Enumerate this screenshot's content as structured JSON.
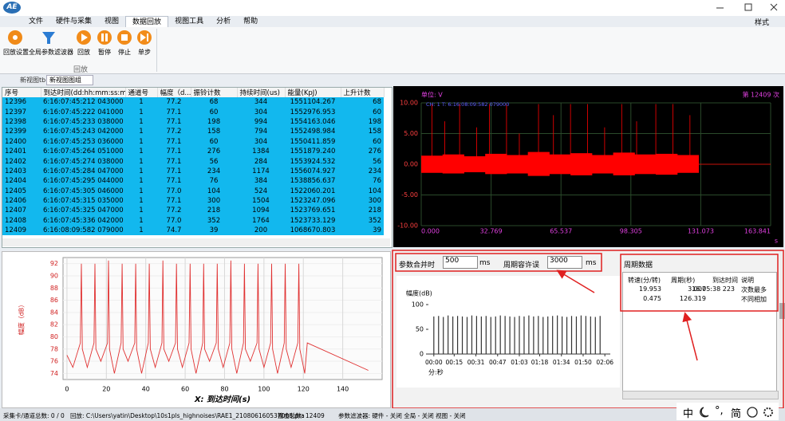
{
  "title_bar": {
    "logo": "AE"
  },
  "menu": {
    "items": [
      "文件",
      "硬件与采集",
      "视图",
      "数据回放",
      "视图工具",
      "分析",
      "帮助"
    ],
    "style": "样式"
  },
  "ribbon": {
    "buttons": [
      "回放设置",
      "全局参数滤波器",
      "回放",
      "暂停",
      "停止",
      "单步"
    ],
    "group": "回放"
  },
  "tabs": [
    "新视图tb",
    "新视图图组"
  ],
  "hit_table": {
    "columns": [
      "序号",
      "到达时间(dd:hh:mm:ss:m...",
      "通道号",
      "幅度（d...",
      "振铃计数",
      "持续时间(us)",
      "能量(KpJ)",
      "上升计数"
    ],
    "rows": [
      [
        "12396",
        "6:16:07:45:212 043000",
        "1",
        "77.2",
        "68",
        "344",
        "1551104.267",
        "68"
      ],
      [
        "12397",
        "6:16:07:45:222 041000",
        "1",
        "77.1",
        "60",
        "304",
        "1552976.953",
        "60"
      ],
      [
        "12398",
        "6:16:07:45:233 038000",
        "1",
        "77.1",
        "198",
        "994",
        "1554163.046",
        "198"
      ],
      [
        "12399",
        "6:16:07:45:243 042000",
        "1",
        "77.2",
        "158",
        "794",
        "1552498.984",
        "158"
      ],
      [
        "12400",
        "6:16:07:45:253 036000",
        "1",
        "77.1",
        "60",
        "304",
        "1550411.859",
        "60"
      ],
      [
        "12401",
        "6:16:07:45:264 051000",
        "1",
        "77.1",
        "276",
        "1384",
        "1551879.240",
        "276"
      ],
      [
        "12402",
        "6:16:07:45:274 038000",
        "1",
        "77.1",
        "56",
        "284",
        "1553924.532",
        "56"
      ],
      [
        "12403",
        "6:16:07:45:284 047000",
        "1",
        "77.1",
        "234",
        "1174",
        "1556074.927",
        "234"
      ],
      [
        "12404",
        "6:16:07:45:295 044000",
        "1",
        "77.1",
        "76",
        "384",
        "1538856.637",
        "76"
      ],
      [
        "12405",
        "6:16:07:45:305 046000",
        "1",
        "77.0",
        "104",
        "524",
        "1522060.201",
        "104"
      ],
      [
        "12406",
        "6:16:07:45:315 035000",
        "1",
        "77.1",
        "300",
        "1504",
        "1523247.096",
        "300"
      ],
      [
        "12407",
        "6:16:07:45:325 047000",
        "1",
        "77.2",
        "218",
        "1094",
        "1523769.651",
        "218"
      ],
      [
        "12408",
        "6:16:07:45:336 042000",
        "1",
        "77.0",
        "352",
        "1764",
        "1523733.129",
        "352"
      ],
      [
        "12409",
        "6:16:08:09:582 079000",
        "1",
        "74.7",
        "39",
        "200",
        "1068670.803",
        "39"
      ]
    ]
  },
  "waveform": {
    "type": "area",
    "unit": "单位: V",
    "count": "第 12409 次",
    "info": "CH: 1  T: 6:16:08:09:582 079000",
    "x": [
      0,
      10,
      20,
      30,
      40,
      50,
      60,
      70,
      80,
      90,
      100,
      110,
      120
    ],
    "upper": [
      1.4,
      1.6,
      1.3,
      1.7,
      1.5,
      2.0,
      1.6,
      1.8,
      1.5,
      1.9,
      1.6,
      1.7,
      1.5
    ],
    "lower": [
      -1.4,
      -1.5,
      -1.3,
      -1.6,
      -1.5,
      -1.9,
      -1.6,
      -1.8,
      -1.5,
      -1.8,
      -1.6,
      -1.7,
      -1.4
    ],
    "spikes_x": [
      5,
      11,
      18,
      26,
      32,
      40,
      46,
      55,
      62,
      70,
      78,
      86,
      94,
      101,
      110,
      118,
      126
    ],
    "spikes": [
      9.8,
      7,
      9.8,
      6,
      9.8,
      9.8,
      5,
      9.8,
      8,
      9.8,
      9.8,
      6,
      9.8,
      7,
      9.8,
      9.8,
      8
    ],
    "xlim": [
      0,
      163.841
    ],
    "ylim": [
      -10,
      10
    ],
    "xticks": [
      {
        "value": 0,
        "label": "0.000"
      },
      32.769,
      65.537,
      98.305,
      131.073,
      163.841
    ],
    "yticks": [
      {
        "value": 10,
        "label": "10.00"
      },
      {
        "value": 5,
        "label": "5.00"
      },
      {
        "value": 0,
        "label": "0.00"
      },
      {
        "value": -5,
        "label": "-5.00"
      },
      {
        "value": -10,
        "label": "-10.00"
      }
    ],
    "x_unit": "s",
    "color": "#ff0000",
    "grid": true
  },
  "time_chart": {
    "type": "line",
    "y_label": "幅度（dB）",
    "x_label": "X: 到达时间(s)",
    "x": [
      0,
      3,
      6.8,
      7.3,
      7.8,
      10.3,
      13.7,
      14.2,
      14.7,
      17.2,
      20.6,
      21.1,
      21.6,
      24.1,
      27.5,
      28,
      28.5,
      31,
      34.4,
      34.9,
      35.4,
      37.9,
      41.3,
      41.8,
      42.3,
      44.8,
      48.2,
      48.7,
      49.2,
      51.7,
      55.1,
      55.6,
      56.1,
      58.6,
      62,
      62.5,
      63,
      65.5,
      68.9,
      69.4,
      69.9,
      72.4,
      75.8,
      76.3,
      76.8,
      79.3,
      82.7,
      83.2,
      83.7,
      86.2,
      89.6,
      90.1,
      90.6,
      93.1,
      96.5,
      97,
      97.5,
      100,
      103.4,
      103.9,
      104.4,
      106.9,
      110.3,
      110.8,
      111.3,
      113.8,
      117.2,
      117.7,
      118.2,
      120.7,
      122,
      153
    ],
    "values": [
      77,
      75,
      79,
      92,
      78,
      75,
      79,
      92,
      78,
      76,
      79,
      92.5,
      78,
      74,
      79,
      92,
      78,
      76,
      79,
      92,
      78,
      74,
      79,
      92,
      78,
      75,
      79,
      92.5,
      78,
      76,
      79,
      92,
      78,
      75,
      79,
      92,
      78,
      74,
      79,
      92,
      78,
      76,
      79,
      92,
      78,
      75,
      79,
      92.5,
      78,
      74,
      79,
      92,
      78,
      76,
      79,
      92,
      78,
      75,
      79,
      92,
      78,
      74,
      79,
      92,
      78,
      75,
      79,
      92,
      78,
      74,
      79,
      74.5
    ],
    "xlim": [
      -2,
      160
    ],
    "ylim": [
      73,
      93
    ],
    "xticks": [
      0,
      20,
      40,
      60,
      80,
      100,
      120,
      140
    ],
    "yticks": [
      74,
      76,
      78,
      80,
      82,
      84,
      86,
      88,
      90,
      92
    ],
    "color": "#e03030",
    "grid": true
  },
  "period_params": {
    "merge_label": "参数合并时",
    "merge_value": "500",
    "merge_unit": "ms",
    "tolerance_label": "周期容许误",
    "tolerance_value": "3000",
    "tolerance_unit": "ms"
  },
  "period_chart": {
    "type": "bar",
    "y_label": "幅度(dB)",
    "x_unit": "分:秒",
    "x": [
      0,
      3.5,
      7,
      10.5,
      14,
      17.5,
      21,
      24.5,
      28,
      31.5,
      35,
      38.5,
      42,
      45.5,
      49,
      52.5,
      56,
      59.5,
      63,
      66.5,
      70,
      73.5,
      77,
      80.5,
      84,
      87.5,
      91,
      94.5,
      98,
      101.5,
      105,
      108.5,
      112,
      115.5,
      119,
      122.5
    ],
    "values": [
      76,
      77,
      75,
      78,
      76,
      77,
      76,
      75,
      78,
      77,
      76,
      77,
      75,
      76,
      78,
      77,
      76,
      75,
      77,
      76,
      78,
      76,
      77,
      75,
      76,
      77,
      78,
      76,
      75,
      77,
      76,
      78,
      77,
      76,
      75,
      77
    ],
    "xlim": [
      -4,
      130
    ],
    "ylim": [
      0,
      100
    ],
    "yticks": [
      0,
      50,
      100
    ],
    "xticks": [
      {
        "value": 0,
        "label": "00:00"
      },
      {
        "value": 15,
        "label": "00:15"
      },
      {
        "value": 31,
        "label": "00:31"
      },
      {
        "value": 47,
        "label": "00:47"
      },
      {
        "value": 63,
        "label": "01:03"
      },
      {
        "value": 78,
        "label": "01:18"
      },
      {
        "value": 94,
        "label": "01:34"
      },
      {
        "value": 110,
        "label": "01:50"
      },
      {
        "value": 126,
        "label": "02:06"
      }
    ],
    "color": "#333333"
  },
  "period_data": {
    "title": "周期数据",
    "columns": [
      "转速(分/转)",
      "周期(秒)",
      "到达时间",
      "说明"
    ],
    "rows": [
      [
        "19.953",
        "3.007",
        "16:05:38 223",
        "次数最多"
      ],
      [
        "0.475",
        "126.319",
        "",
        "不同相加"
      ]
    ]
  },
  "status_bar": {
    "cards": "采集卡/通道总数: 0 / 0",
    "playback": "回放:  C:\\Users\\yatin\\Desktop\\10s1pls_highnoises\\RAE1_210806160537008.pra",
    "hits": "撞击总数: 12409",
    "filters": "参数滤波器:  硬件 - 关闭   全局 - 关闭   视图 - 关闭"
  },
  "ime": [
    "中",
    "°,",
    "简"
  ]
}
